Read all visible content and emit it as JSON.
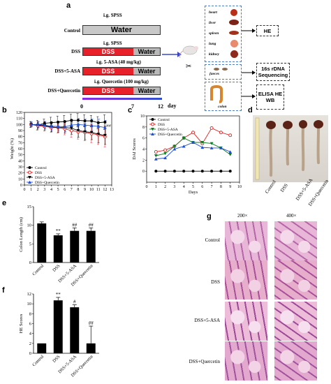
{
  "panel_a": {
    "letter": "a",
    "groups": [
      {
        "name": "Control",
        "top_label": "i.g. SPSS",
        "segments": [
          "Water"
        ]
      },
      {
        "name": "DSS",
        "top_label": "i.g. SPSS",
        "segments": [
          "DSS",
          "Water"
        ]
      },
      {
        "name": "DSS+5-ASA",
        "top_label": "i.g. 5-ASA (40 mg/kg)",
        "segments": [
          "DSS",
          "Water"
        ]
      },
      {
        "name": "DSS+Quercetin",
        "top_label": "i.g. Quercetin (100 mg/kg)",
        "segments": [
          "DSS",
          "Water"
        ]
      }
    ],
    "timeline": {
      "ticks": [
        "0",
        "7",
        "12"
      ],
      "unit": "day"
    },
    "organs": [
      "heart",
      "liver",
      "spleen",
      "lung",
      "kidney"
    ],
    "faeces_label": "faeces",
    "colon_label": "colon",
    "results": {
      "organs": "HE",
      "faeces": "16s rDNA Sequencing",
      "colon": "ELISA HE WB"
    },
    "colors": {
      "dss": "#e8202a",
      "water": "#b8b8b8",
      "gray_bar": "#c8c8c8",
      "arrow": "#3b49c8"
    }
  },
  "panel_b": {
    "letter": "b",
    "chart_data": {
      "type": "line",
      "xlabel": "",
      "ylabel": "Weight (%)",
      "xlim": [
        0,
        13
      ],
      "ylim": [
        0,
        120
      ],
      "yticks": [
        0,
        10,
        20,
        30,
        40,
        50,
        60,
        70,
        80,
        90,
        100,
        110,
        120
      ],
      "xticks": [
        0,
        1,
        2,
        3,
        4,
        5,
        6,
        7,
        8,
        9,
        10,
        11,
        12,
        13
      ],
      "x": [
        1,
        2,
        3,
        4,
        5,
        6,
        7,
        8,
        9,
        10,
        11,
        12
      ],
      "series": [
        {
          "name": "Control",
          "color": "#000000",
          "marker": "circle-filled",
          "values": [
            100,
            99,
            102,
            103,
            104,
            105,
            107,
            107,
            106,
            106,
            103,
            104
          ],
          "err": [
            5,
            8,
            7,
            9,
            10,
            10,
            10,
            11,
            10,
            9,
            10,
            12
          ]
        },
        {
          "name": "DSS",
          "color": "#e02020",
          "marker": "circle-open",
          "values": [
            100,
            98,
            97,
            95,
            95,
            93,
            90,
            88,
            87,
            85,
            83,
            80
          ],
          "err": [
            4,
            6,
            8,
            8,
            9,
            10,
            11,
            12,
            14,
            15,
            16,
            17
          ]
        },
        {
          "name": "DSS+5-ASA",
          "color": "#000000",
          "marker": "triangle-down",
          "values": [
            100,
            99,
            98,
            96,
            95,
            95,
            94,
            90,
            88,
            87,
            84,
            82
          ],
          "err": [
            4,
            5,
            7,
            8,
            8,
            9,
            10,
            11,
            13,
            12,
            14,
            15
          ]
        },
        {
          "name": "DSS+Quercetin",
          "color": "#1f4fd0",
          "marker": "triangle-up",
          "values": [
            100,
            100,
            99,
            97,
            97,
            96,
            99,
            100,
            99,
            98,
            97,
            95
          ],
          "err": [
            4,
            5,
            6,
            7,
            8,
            8,
            9,
            10,
            10,
            11,
            12,
            12
          ]
        }
      ],
      "annotations": [
        "##"
      ],
      "legend": "bottom-left"
    }
  },
  "panel_c": {
    "letter": "c",
    "chart_data": {
      "type": "line",
      "xlabel": "Days",
      "ylabel": "DAI Scores",
      "xlim": [
        0,
        10
      ],
      "ylim": [
        -2,
        10
      ],
      "yticks": [
        0,
        2,
        4,
        6,
        8,
        10
      ],
      "xticks": [
        0,
        1,
        2,
        3,
        4,
        5,
        6,
        7,
        8,
        9,
        10
      ],
      "x": [
        1,
        2,
        3,
        4,
        5,
        6,
        7,
        8,
        9
      ],
      "series": [
        {
          "name": "Control",
          "color": "#000000",
          "marker": "circle-filled",
          "values": [
            0,
            0,
            0,
            0,
            0,
            0,
            0,
            0,
            0
          ]
        },
        {
          "name": "DSS",
          "color": "#e02020",
          "marker": "circle-open",
          "values": [
            3.5,
            3.8,
            4.5,
            6,
            7,
            5,
            7.8,
            7,
            6.5
          ]
        },
        {
          "name": "DSS+5-ASA",
          "color": "#0e7a20",
          "marker": "triangle-down",
          "values": [
            2.8,
            3.2,
            4.5,
            6,
            5.2,
            5.2,
            5,
            4.2,
            3
          ]
        },
        {
          "name": "DSS+Quercetin",
          "color": "#1f4fd0",
          "marker": "triangle-up",
          "values": [
            2.2,
            2.4,
            4,
            4.5,
            5.2,
            4.3,
            4.2,
            4.2,
            3.5
          ]
        }
      ],
      "legend": "top-left"
    }
  },
  "panel_d": {
    "letter": "d",
    "labels": [
      "Control",
      "DSS",
      "DSS+5-ASA",
      "DSS+Quercetin"
    ]
  },
  "panel_e": {
    "letter": "e",
    "chart_data": {
      "type": "bar",
      "categories": [
        "Control",
        "DSS",
        "DSS+5-ASA",
        "DSS+Quercetin"
      ],
      "values": [
        10.5,
        7.3,
        8.5,
        8.5
      ],
      "err": [
        0.4,
        0.4,
        0.8,
        0.8
      ],
      "annotations": [
        "",
        "**",
        "##",
        "##"
      ],
      "ylabel": "Colon Length (cm)",
      "ylim": [
        0,
        15
      ],
      "yticks": [
        0,
        5,
        10,
        15
      ]
    }
  },
  "panel_f": {
    "letter": "f",
    "chart_data": {
      "type": "bar",
      "categories": [
        "Control",
        "DSS",
        "DSS+5-ASA",
        "DSS+Quercetin"
      ],
      "values": [
        2,
        10.7,
        9.3,
        2
      ],
      "err": [
        0,
        0.6,
        0.5,
        3.5
      ],
      "annotations": [
        "",
        "**",
        "#",
        "##"
      ],
      "ylabel": "HE Scores",
      "ylim": [
        0,
        12
      ],
      "yticks": [
        0,
        2,
        4,
        6,
        8,
        10,
        12
      ]
    }
  },
  "panel_g": {
    "letter": "g",
    "columns": [
      "200×",
      "400×"
    ],
    "rows": [
      "Control",
      "DSS",
      "DSS+5-ASA",
      "DSS+Quercetin"
    ]
  }
}
